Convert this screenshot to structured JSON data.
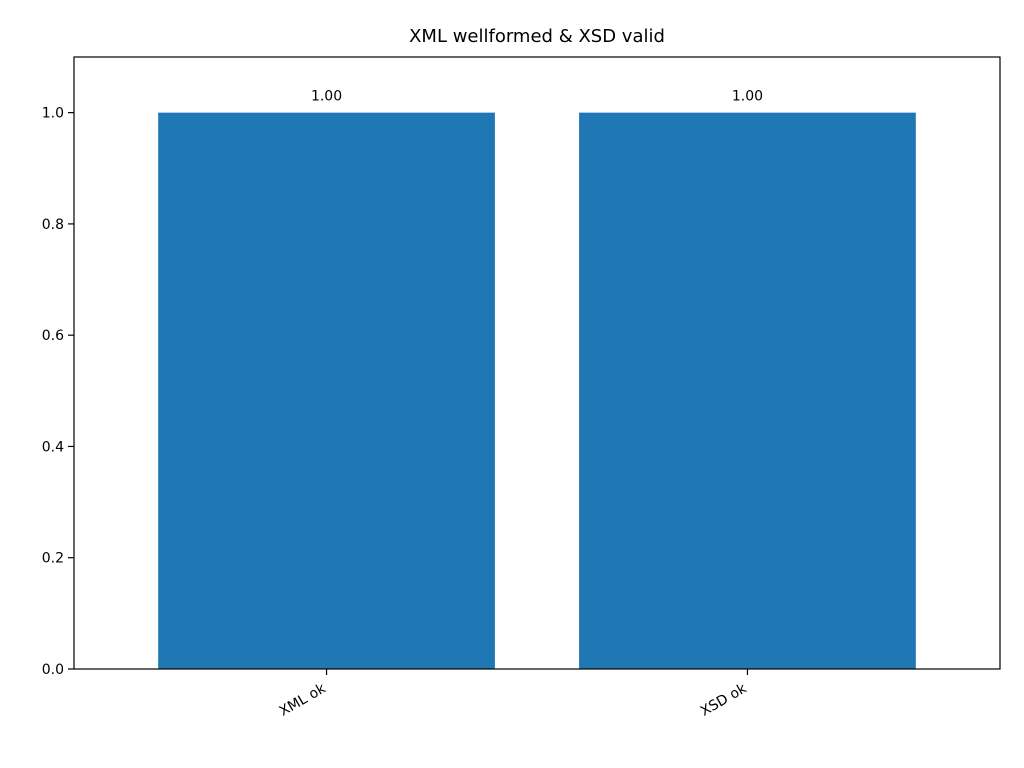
{
  "chart_data": {
    "type": "bar",
    "title": "XML wellformed & XSD valid",
    "xlabel": "",
    "ylabel": "",
    "categories": [
      "XML ok",
      "XSD ok"
    ],
    "values": [
      1.0,
      1.0
    ],
    "value_labels": [
      "1.00",
      "1.00"
    ],
    "ylim": [
      0,
      1.1
    ],
    "yticks": [
      0.0,
      0.2,
      0.4,
      0.6,
      0.8,
      1.0
    ],
    "ytick_labels": [
      "0.0",
      "0.2",
      "0.4",
      "0.6",
      "0.8",
      "1.0"
    ],
    "grid": false,
    "bar_color": "#1f77b4",
    "x_tick_rotation": "30° (right-aligned)"
  }
}
